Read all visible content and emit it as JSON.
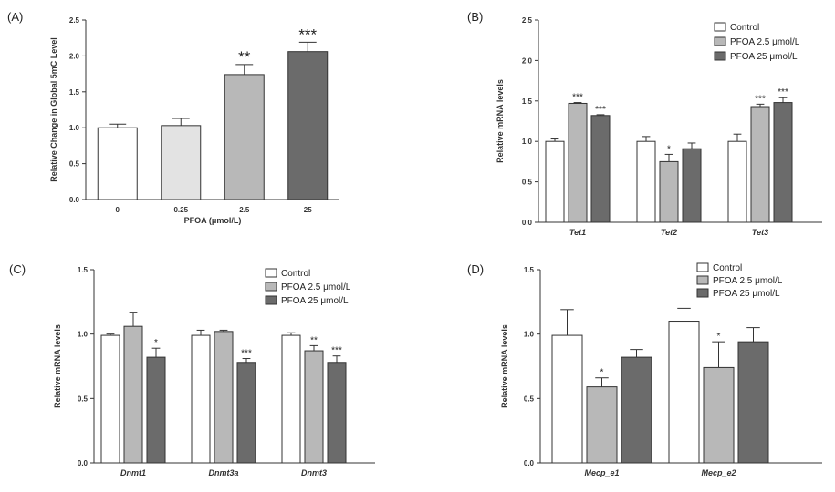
{
  "colors": {
    "control": "#ffffff",
    "pfoa_low": "#b8b8b8",
    "pfoa_high": "#6b6b6b",
    "pfoa_0_25": "#e3e3e3",
    "axis": "#333333"
  },
  "chart_data": [
    {
      "panel": "(A)",
      "type": "bar",
      "ylabel": "Relative Change in Global 5mC Level",
      "xlabel": "PFOA (μmol/L)",
      "ylim": [
        0,
        2.5
      ],
      "yticks": [
        "0.0",
        "0.5",
        "1.0",
        "1.5",
        "2.0",
        "2.5"
      ],
      "categories": [
        "0",
        "0.25",
        "2.5",
        "25"
      ],
      "values": [
        1.0,
        1.03,
        1.74,
        2.06
      ],
      "errors": [
        0.05,
        0.1,
        0.14,
        0.13
      ],
      "annotations": [
        "",
        "",
        "**",
        "***"
      ],
      "bar_colors": [
        "control",
        "pfoa_0_25",
        "pfoa_low",
        "pfoa_high"
      ]
    },
    {
      "panel": "(B)",
      "type": "bar",
      "ylabel": "Relative mRNA levels",
      "ylim": [
        0,
        2.5
      ],
      "yticks": [
        "0.0",
        "0.5",
        "1.0",
        "1.5",
        "2.0",
        "2.5"
      ],
      "categories": [
        "Tet1",
        "Tet2",
        "Tet3"
      ],
      "legend": [
        "Control",
        "PFOA 2.5 μmol/L",
        "PFOA 25 μmol/L"
      ],
      "series": [
        {
          "name": "Control",
          "values": [
            1.0,
            1.0,
            1.0
          ],
          "errors": [
            0.03,
            0.06,
            0.09
          ],
          "annotations": [
            "",
            "",
            ""
          ]
        },
        {
          "name": "PFOA 2.5 μmol/L",
          "values": [
            1.47,
            0.75,
            1.43
          ],
          "errors": [
            0.01,
            0.09,
            0.03
          ],
          "annotations": [
            "***",
            "*",
            "***"
          ]
        },
        {
          "name": "PFOA 25 μmol/L",
          "values": [
            1.32,
            0.91,
            1.48
          ],
          "errors": [
            0.01,
            0.07,
            0.06
          ],
          "annotations": [
            "***",
            "",
            "***"
          ]
        }
      ]
    },
    {
      "panel": "(C)",
      "type": "bar",
      "ylabel": "Relative mRNA levels",
      "ylim": [
        0,
        1.5
      ],
      "yticks": [
        "0.0",
        "0.5",
        "1.0",
        "1.5"
      ],
      "categories": [
        "Dnmt1",
        "Dnmt3a",
        "Dnmt3"
      ],
      "legend": [
        "Control",
        "PFOA 2.5 μmol/L",
        "PFOA 25 μmol/L"
      ],
      "series": [
        {
          "name": "Control",
          "values": [
            0.99,
            0.99,
            0.99
          ],
          "errors": [
            0.01,
            0.04,
            0.02
          ],
          "annotations": [
            "",
            "",
            ""
          ]
        },
        {
          "name": "PFOA 2.5 μmol/L",
          "values": [
            1.06,
            1.02,
            0.87
          ],
          "errors": [
            0.11,
            0.01,
            0.04
          ],
          "annotations": [
            "",
            "",
            "**"
          ]
        },
        {
          "name": "PFOA 25 μmol/L",
          "values": [
            0.82,
            0.78,
            0.78
          ],
          "errors": [
            0.07,
            0.03,
            0.05
          ],
          "annotations": [
            "*",
            "***",
            "***"
          ]
        }
      ]
    },
    {
      "panel": "(D)",
      "type": "bar",
      "ylabel": "Relative mRNA levels",
      "ylim": [
        0,
        1.5
      ],
      "yticks": [
        "0.0",
        "0.5",
        "1.0",
        "1.5"
      ],
      "categories": [
        "Mecp_e1",
        "Mecp_e2"
      ],
      "legend": [
        "Control",
        "PFOA 2.5 μmol/L",
        "PFOA 25 μmol/L"
      ],
      "series": [
        {
          "name": "Control",
          "values": [
            0.99,
            1.1
          ],
          "errors": [
            0.2,
            0.1
          ],
          "annotations": [
            "",
            ""
          ]
        },
        {
          "name": "PFOA 2.5 μmol/L",
          "values": [
            0.59,
            0.74
          ],
          "errors": [
            0.07,
            0.2
          ],
          "annotations": [
            "*",
            "*"
          ]
        },
        {
          "name": "PFOA 25 μmol/L",
          "values": [
            0.82,
            0.94
          ],
          "errors": [
            0.06,
            0.11
          ],
          "annotations": [
            "",
            ""
          ]
        }
      ]
    }
  ]
}
